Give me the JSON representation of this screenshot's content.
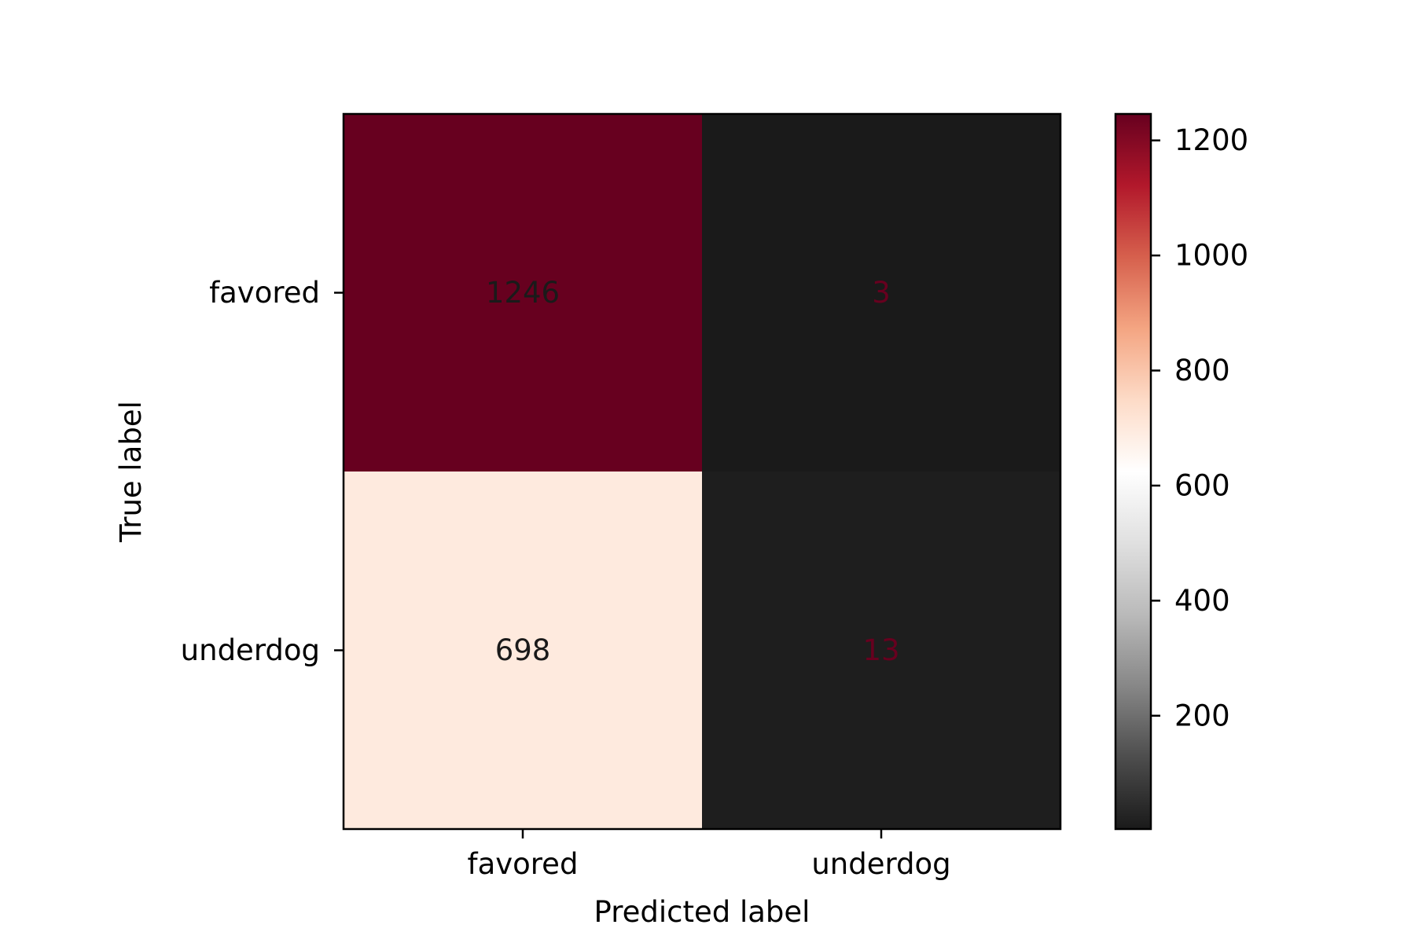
{
  "chart_data": {
    "type": "heatmap",
    "title": "",
    "xlabel": "Predicted label",
    "ylabel": "True label",
    "x_categories": [
      "favored",
      "underdog"
    ],
    "y_categories": [
      "favored",
      "underdog"
    ],
    "matrix": [
      [
        1246,
        3
      ],
      [
        698,
        13
      ]
    ],
    "colorbar": {
      "min": 3,
      "max": 1246,
      "ticks": [
        200,
        400,
        600,
        800,
        1000,
        1200
      ],
      "colormap": "RdGy_r",
      "stops": [
        "#1a1a1a",
        "#4d4d4d",
        "#878787",
        "#bababa",
        "#e0e0e0",
        "#ffffff",
        "#fddbc7",
        "#f4a582",
        "#d6604d",
        "#b2182b",
        "#67001f"
      ]
    },
    "text_colors": {
      "light": "#1a1a1a",
      "dark": "#67001f"
    }
  }
}
